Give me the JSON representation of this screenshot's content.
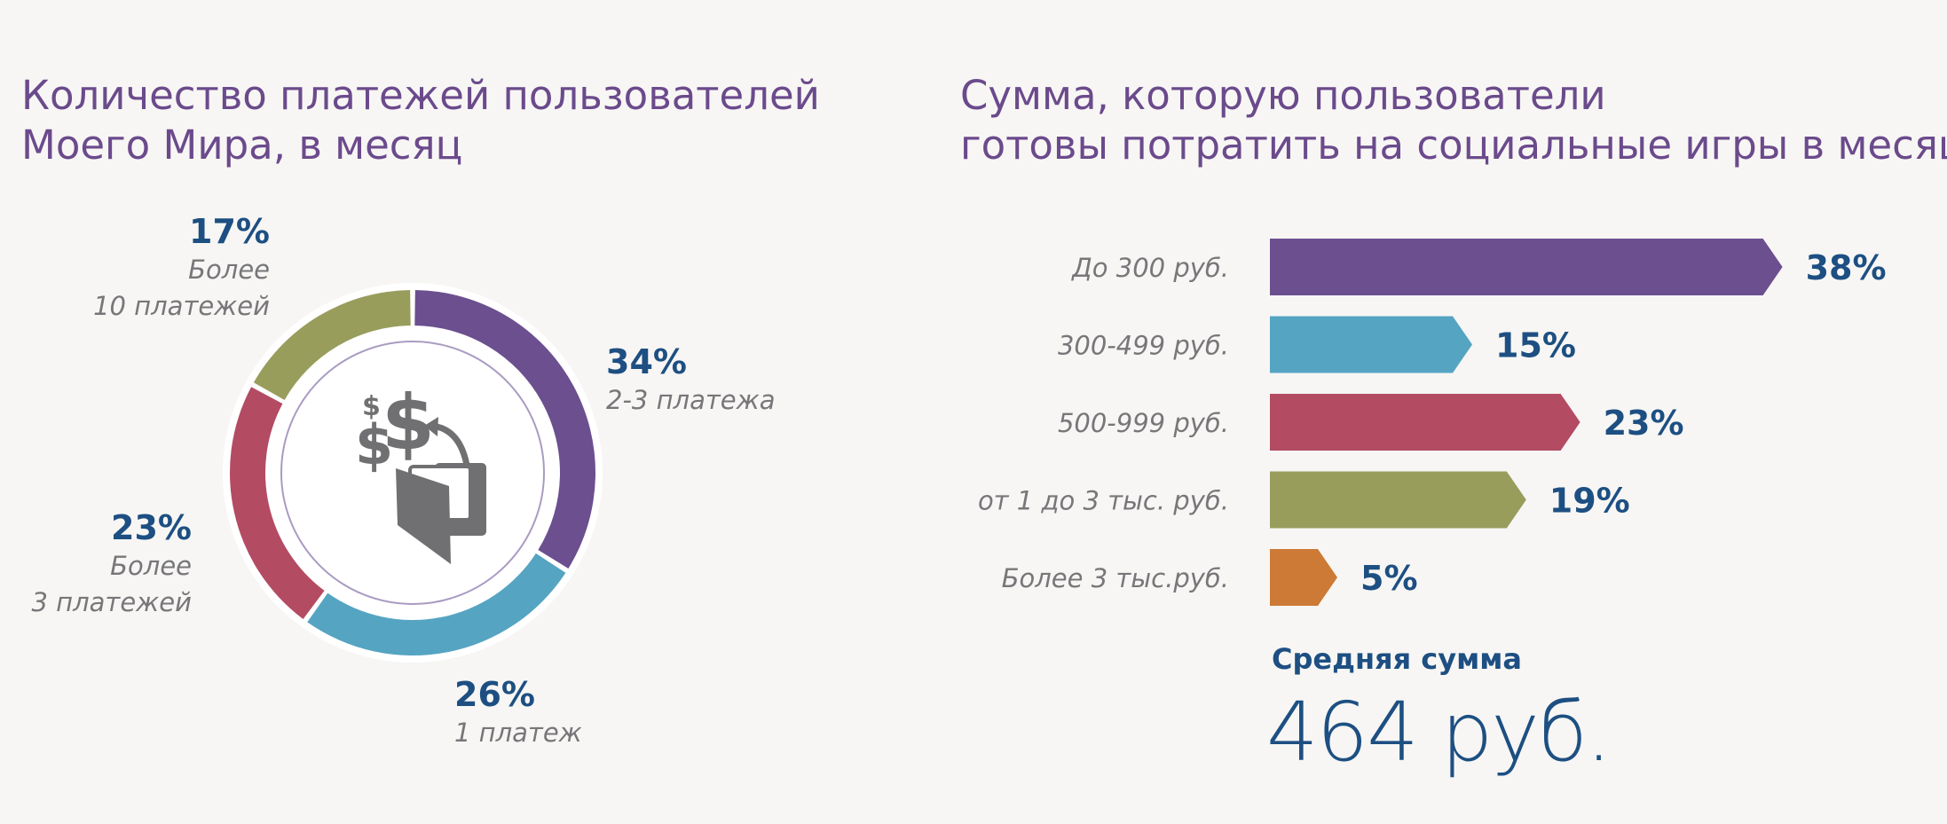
{
  "left": {
    "title_lines": [
      "Количество платежей пользователей",
      "Моего Мира, в месяц"
    ]
  },
  "right": {
    "title_lines": [
      "Сумма, которую пользователи",
      "готовы потратить на социальные игры в месяц"
    ]
  },
  "average": {
    "label": "Средняя сумма",
    "value": "464 руб."
  },
  "icon": "money-wallet-icon",
  "chart_data": [
    {
      "type": "pie",
      "title": "Количество платежей пользователей Моего Мира, в месяц",
      "unit": "%",
      "slices": [
        {
          "label_lines": [
            "2-3 платежа"
          ],
          "value": 34,
          "value_label": "34%",
          "color": "#6b4f8f"
        },
        {
          "label_lines": [
            "1 платеж"
          ],
          "value": 26,
          "value_label": "26%",
          "color": "#55a4c2"
        },
        {
          "label_lines": [
            "Более",
            "3 платежей"
          ],
          "value": 23,
          "value_label": "23%",
          "color": "#b34b63"
        },
        {
          "label_lines": [
            "Более",
            "10 платежей"
          ],
          "value": 17,
          "value_label": "17%",
          "color": "#989d5c"
        }
      ]
    },
    {
      "type": "bar",
      "orientation": "horizontal",
      "title": "Сумма, которую пользователи готовы потратить на социальные игры в месяц",
      "unit": "%",
      "categories": [
        "До 300 руб.",
        "300-499 руб.",
        "500-999 руб.",
        "от 1 до 3 тыс. руб.",
        "Более 3 тыс.руб."
      ],
      "values": [
        38,
        15,
        23,
        19,
        5
      ],
      "value_labels": [
        "38%",
        "15%",
        "23%",
        "19%",
        "5%"
      ],
      "colors": [
        "#6b4f8f",
        "#55a4c2",
        "#b34b63",
        "#989d5c",
        "#cc7a35"
      ]
    }
  ]
}
